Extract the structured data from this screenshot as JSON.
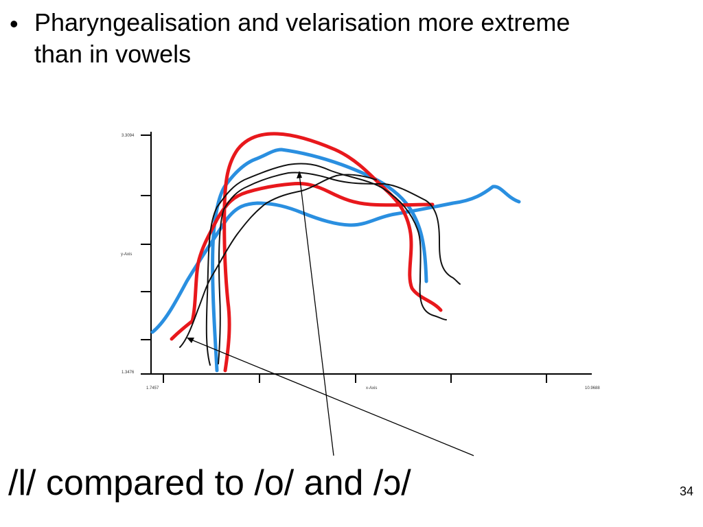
{
  "slide": {
    "bullet": {
      "marker": "•",
      "text": "Pharyngealisation and velarisation more extreme than in vowels"
    },
    "figure": {
      "y_axis_top_label": "3.3094",
      "y_axis_label": "y-Axis",
      "y_axis_bottom_label": "1.3476",
      "x_axis_left_label": "1.7457",
      "x_axis_label": "x-Axis",
      "x_axis_right_label": "10.9688",
      "colors": {
        "red": "#e8181c",
        "blue": "#2a8fe0",
        "black": "#111111"
      }
    },
    "caption": "/l/ compared to /o/ and /ɔ/",
    "page_number": "34"
  }
}
